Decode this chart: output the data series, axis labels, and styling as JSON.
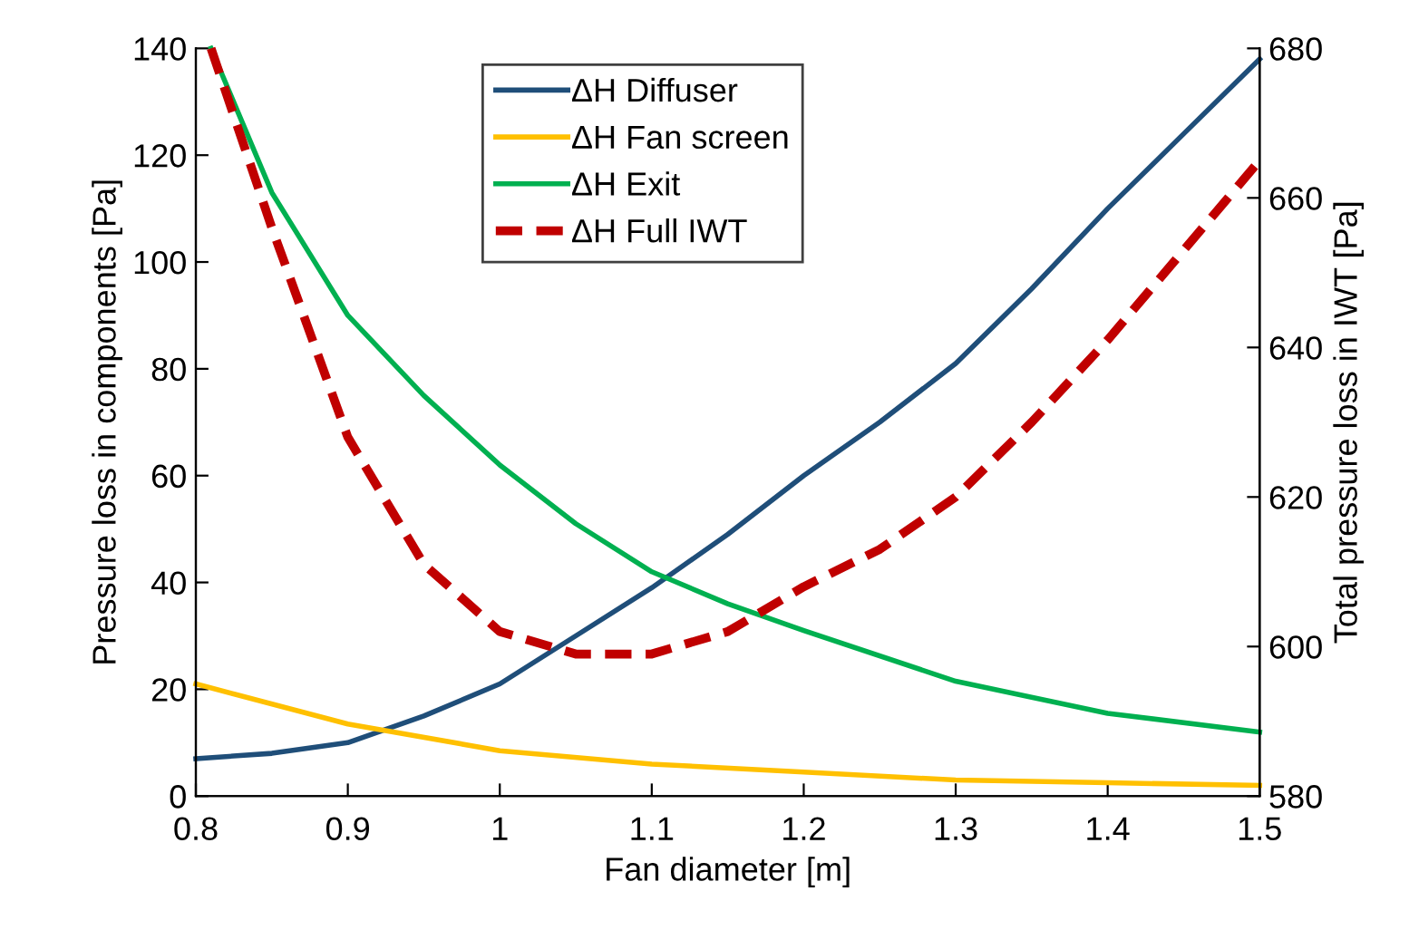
{
  "chart_data": {
    "type": "line",
    "xlabel": "Fan diameter [m]",
    "ylabel": "Pressure loss in components [Pa]",
    "y2label": "Total pressure loss in IWT [Pa]",
    "xlim": [
      0.8,
      1.5
    ],
    "xticks": [
      0.8,
      0.9,
      1,
      1.1,
      1.2,
      1.3,
      1.4,
      1.5
    ],
    "ylim": [
      0,
      140
    ],
    "yticks": [
      0,
      20,
      40,
      60,
      80,
      100,
      120,
      140
    ],
    "y2lim": [
      580,
      680
    ],
    "y2ticks": [
      580,
      600,
      620,
      640,
      660,
      680
    ],
    "grid": false,
    "legend": "top",
    "marker": "none",
    "series": [
      {
        "name": "ΔH Diffuser",
        "color": "#1f4e79",
        "line_style": "solid",
        "x": [
          0.8,
          0.85,
          0.9,
          0.95,
          1.0,
          1.05,
          1.1,
          1.15,
          1.2,
          1.25,
          1.3,
          1.35,
          1.4,
          1.45,
          1.5
        ],
        "values": [
          7,
          8,
          10,
          15,
          21,
          30,
          39,
          49,
          60,
          70,
          81,
          95,
          110,
          124,
          138
        ]
      },
      {
        "name": "ΔH Fan screen",
        "color": "#ffc000",
        "line_style": "solid",
        "x": [
          0.8,
          0.9,
          1.0,
          1.1,
          1.2,
          1.3,
          1.4,
          1.5
        ],
        "values": [
          21,
          13.5,
          8.5,
          6,
          4.5,
          3,
          2.5,
          2
        ]
      },
      {
        "name": "ΔH Exit",
        "color": "#00b050",
        "line_style": "solid",
        "x": [
          0.81,
          0.85,
          0.9,
          0.95,
          1.0,
          1.05,
          1.1,
          1.15,
          1.2,
          1.3,
          1.4,
          1.5
        ],
        "values": [
          140,
          113,
          90,
          75,
          62,
          51,
          42,
          36,
          31,
          21.5,
          15.5,
          12
        ]
      },
      {
        "name": "ΔH Full IWT",
        "color": "#c00000",
        "line_style": "dashed",
        "axis": "y2",
        "x": [
          0.81,
          0.85,
          0.9,
          0.95,
          1.0,
          1.05,
          1.1,
          1.15,
          1.2,
          1.25,
          1.3,
          1.35,
          1.4,
          1.45,
          1.5
        ],
        "values": [
          680,
          656,
          628,
          611,
          602,
          599,
          599,
          602,
          608,
          613,
          620,
          630,
          641,
          653,
          665
        ]
      }
    ]
  }
}
